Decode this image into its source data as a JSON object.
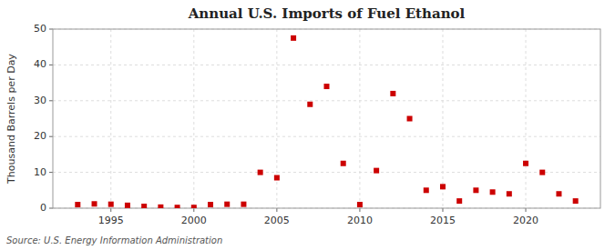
{
  "chart_data": {
    "type": "scatter",
    "title": "Annual U.S. Imports of Fuel Ethanol",
    "ylabel": "Thousand Barrels per Day",
    "annotations": [
      "Source: U.S. Energy Information Administration"
    ],
    "x": [
      1993,
      1994,
      1995,
      1996,
      1997,
      1998,
      1999,
      2000,
      2001,
      2002,
      2003,
      2004,
      2005,
      2006,
      2007,
      2008,
      2009,
      2010,
      2011,
      2012,
      2013,
      2014,
      2015,
      2016,
      2017,
      2018,
      2019,
      2020,
      2021,
      2022,
      2023
    ],
    "values": [
      1.0,
      1.2,
      1.1,
      0.8,
      0.5,
      0.3,
      0.2,
      0.2,
      1.0,
      1.1,
      1.1,
      10.0,
      8.5,
      47.5,
      29.0,
      34.0,
      12.5,
      1.0,
      10.5,
      32.0,
      25.0,
      5.0,
      6.0,
      2.0,
      5.0,
      4.5,
      4.0,
      12.5,
      10.0,
      4.0,
      2.0
    ],
    "color": "#cc0000",
    "marker": "square",
    "xlim": [
      1991.5,
      2024.5
    ],
    "ylim": [
      0,
      50
    ],
    "xticks": [
      1995,
      2000,
      2005,
      2010,
      2015,
      2020
    ],
    "yticks": [
      0,
      10,
      20,
      30,
      40,
      50
    ],
    "grid": true
  }
}
